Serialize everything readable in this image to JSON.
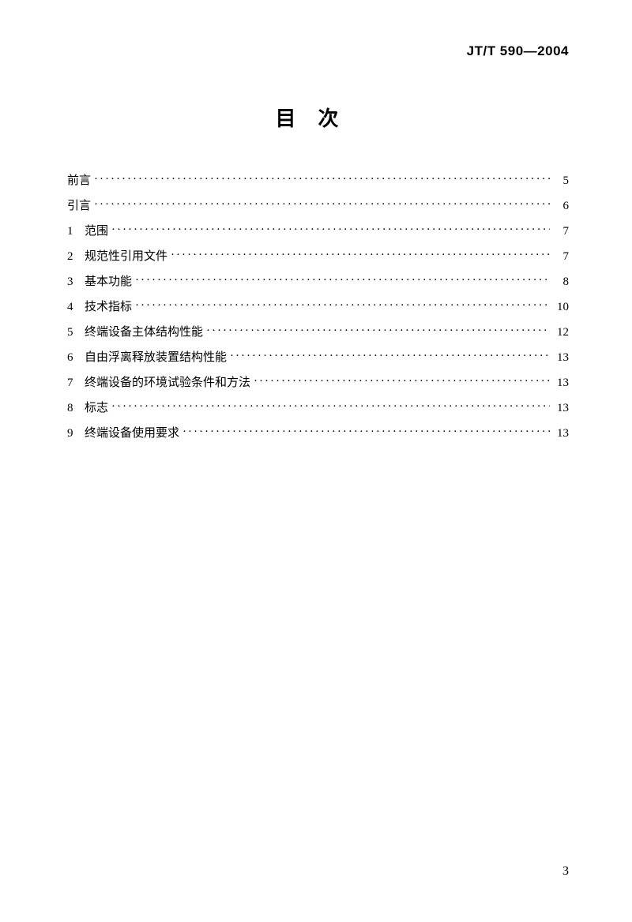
{
  "header": {
    "standard_code": "JT/T 590—2004"
  },
  "title": "目次",
  "toc": {
    "entries": [
      {
        "num": "",
        "label": "前言",
        "page": "5"
      },
      {
        "num": "",
        "label": "引言",
        "page": "6"
      },
      {
        "num": "1",
        "label": "范围",
        "page": "7"
      },
      {
        "num": "2",
        "label": "规范性引用文件",
        "page": "7"
      },
      {
        "num": "3",
        "label": "基本功能",
        "page": "8"
      },
      {
        "num": "4",
        "label": "技术指标",
        "page": "10"
      },
      {
        "num": "5",
        "label": "终端设备主体结构性能",
        "page": "12"
      },
      {
        "num": "6",
        "label": "自由浮离释放装置结构性能",
        "page": "13"
      },
      {
        "num": "7",
        "label": "终端设备的环境试验条件和方法",
        "page": "13"
      },
      {
        "num": "8",
        "label": "标志",
        "page": "13"
      },
      {
        "num": "9",
        "label": "终端设备使用要求",
        "page": "13"
      }
    ]
  },
  "footer": {
    "page_number": "3"
  },
  "styles": {
    "background_color": "#ffffff",
    "text_color": "#000000",
    "title_fontsize": 26,
    "body_fontsize": 15,
    "header_fontsize": 17
  }
}
